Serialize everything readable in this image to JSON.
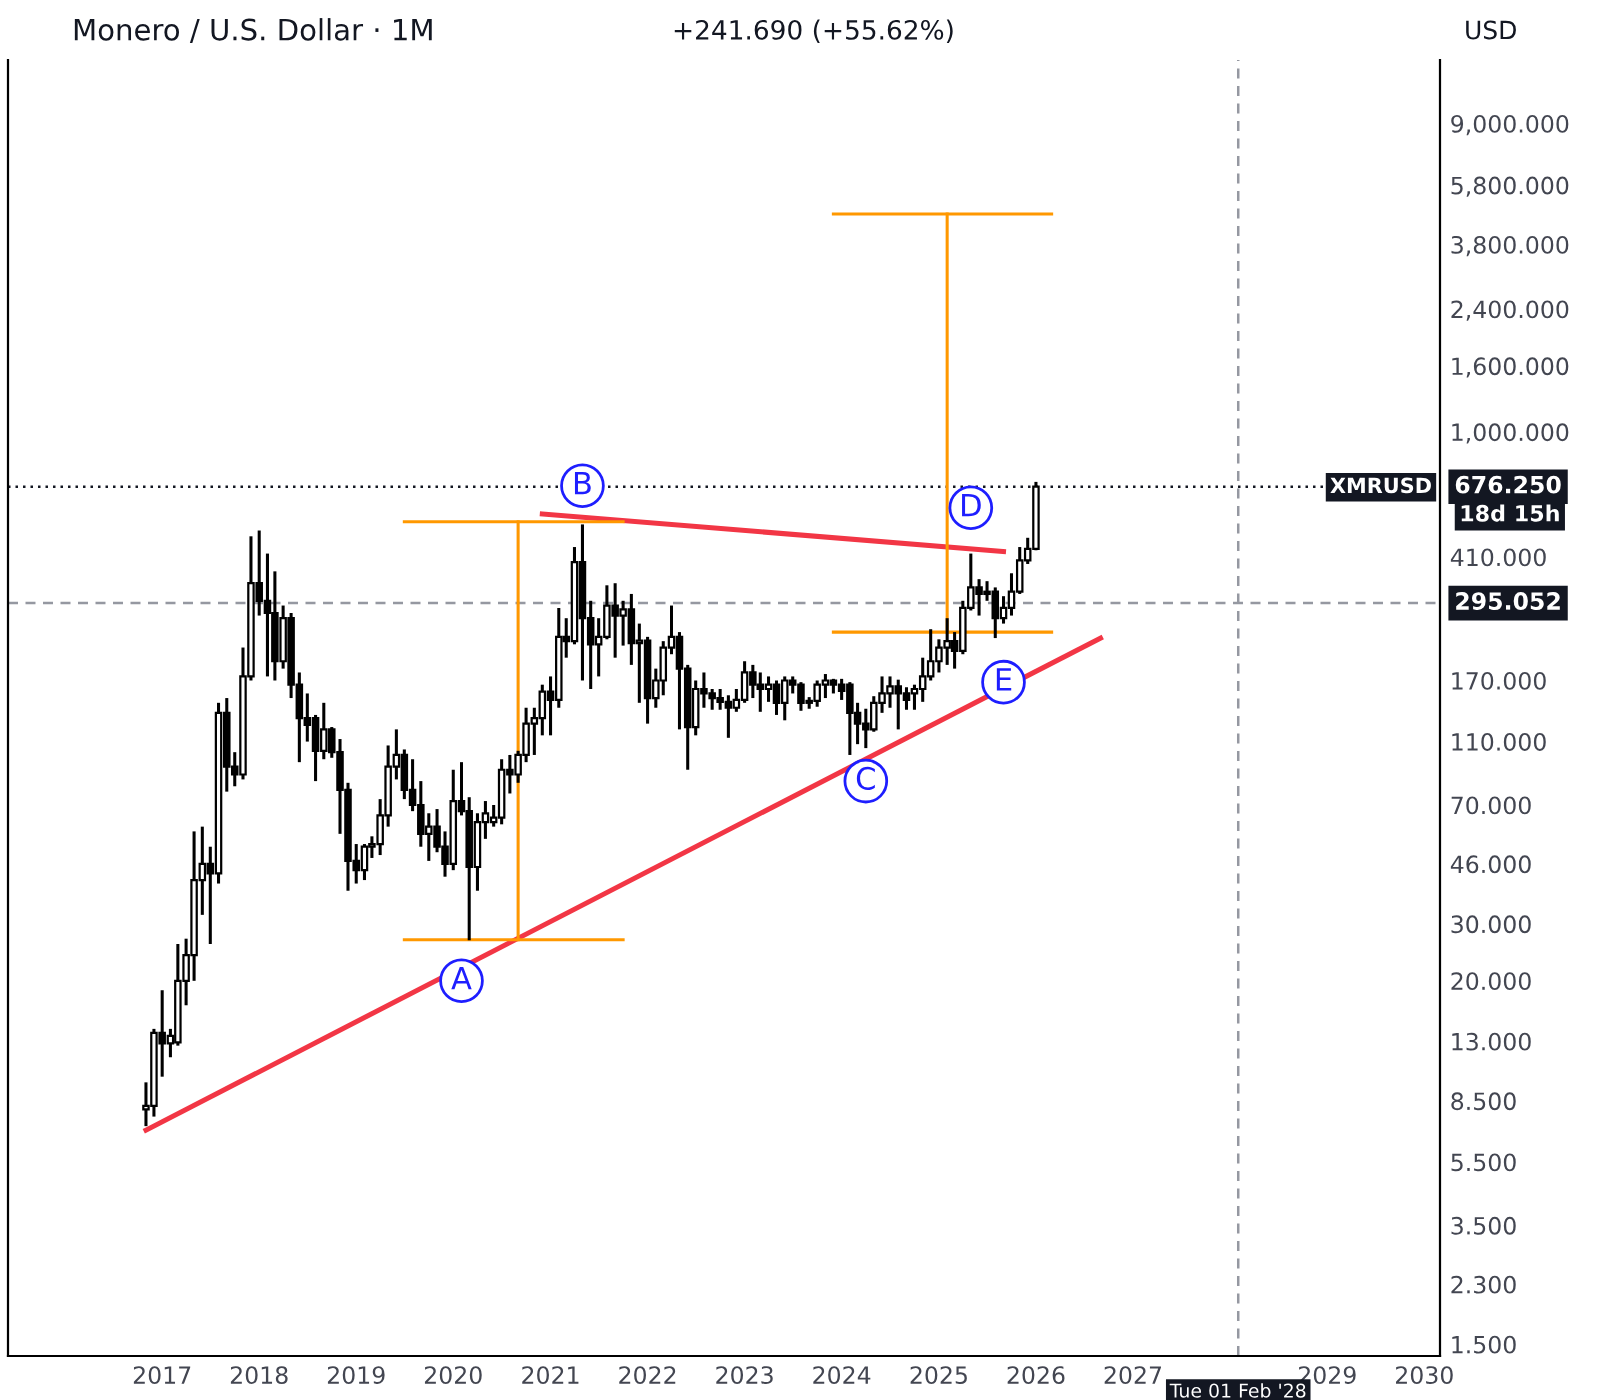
{
  "chart_data": {
    "type": "candlestick",
    "title": "Monero / U.S. Dollar · 1M",
    "subtitle": "+241.690 (+55.62%)",
    "x": [
      "2016-11",
      "2016-12",
      "2017-01",
      "2017-02",
      "2017-03",
      "2017-04",
      "2017-05",
      "2017-06",
      "2017-07",
      "2017-08",
      "2017-09",
      "2017-10",
      "2017-11",
      "2017-12",
      "2018-01",
      "2018-02",
      "2018-03",
      "2018-04",
      "2018-05",
      "2018-06",
      "2018-07",
      "2018-08",
      "2018-09",
      "2018-10",
      "2018-11",
      "2018-12",
      "2019-01",
      "2019-02",
      "2019-03",
      "2019-04",
      "2019-05",
      "2019-06",
      "2019-07",
      "2019-08",
      "2019-09",
      "2019-10",
      "2019-11",
      "2019-12",
      "2020-01",
      "2020-02",
      "2020-03",
      "2020-04",
      "2020-05",
      "2020-06",
      "2020-07",
      "2020-08",
      "2020-09",
      "2020-10",
      "2020-11",
      "2020-12",
      "2021-01",
      "2021-02",
      "2021-03",
      "2021-04",
      "2021-05",
      "2021-06",
      "2021-07",
      "2021-08",
      "2021-09",
      "2021-10",
      "2021-11",
      "2021-12",
      "2022-01",
      "2022-02",
      "2022-03",
      "2022-04",
      "2022-05",
      "2022-06",
      "2022-07",
      "2022-08",
      "2022-09",
      "2022-10",
      "2022-11",
      "2022-12",
      "2023-01",
      "2023-02",
      "2023-03",
      "2023-04",
      "2023-05",
      "2023-06",
      "2023-07",
      "2023-08",
      "2023-09",
      "2023-10",
      "2023-11",
      "2023-12",
      "2024-01",
      "2024-02",
      "2024-03",
      "2024-04",
      "2024-05",
      "2024-06",
      "2024-07",
      "2024-08",
      "2024-09",
      "2024-10",
      "2024-11",
      "2024-12",
      "2025-01",
      "2025-02",
      "2025-03",
      "2025-04",
      "2025-05",
      "2025-06",
      "2025-07",
      "2025-08",
      "2025-09",
      "2025-10",
      "2025-11",
      "2025-12",
      "2026-01"
    ],
    "ohlc": [
      [
        8.0,
        9.7,
        7.1,
        8.2
      ],
      [
        8.2,
        14.2,
        7.6,
        13.8
      ],
      [
        13.8,
        18.7,
        10.1,
        12.8
      ],
      [
        12.8,
        14.2,
        11.6,
        13.5
      ],
      [
        12.9,
        26,
        12.6,
        20
      ],
      [
        20,
        27,
        16.8,
        24
      ],
      [
        24,
        58,
        20,
        41
      ],
      [
        41,
        60,
        32,
        46
      ],
      [
        46,
        52,
        26,
        43
      ],
      [
        43,
        145,
        40,
        135
      ],
      [
        135,
        150,
        77,
        92
      ],
      [
        92,
        102,
        80,
        87
      ],
      [
        87,
        215,
        84,
        175
      ],
      [
        175,
        475,
        170,
        340
      ],
      [
        340,
        495,
        270,
        300
      ],
      [
        300,
        420,
        175,
        275
      ],
      [
        275,
        370,
        170,
        195
      ],
      [
        195,
        290,
        185,
        265
      ],
      [
        265,
        275,
        150,
        165
      ],
      [
        165,
        180,
        95,
        130
      ],
      [
        130,
        155,
        110,
        124
      ],
      [
        130,
        133,
        83,
        103
      ],
      [
        103,
        145,
        97,
        120
      ],
      [
        120,
        122,
        98,
        102
      ],
      [
        102,
        112,
        57,
        78
      ],
      [
        78,
        82,
        38,
        47
      ],
      [
        47,
        53,
        40,
        44
      ],
      [
        44,
        53,
        41,
        52
      ],
      [
        52,
        56,
        48,
        53
      ],
      [
        53,
        73,
        49,
        65
      ],
      [
        65,
        107,
        60,
        92
      ],
      [
        92,
        120,
        84,
        100
      ],
      [
        100,
        104,
        73,
        78
      ],
      [
        78,
        97,
        67,
        70
      ],
      [
        70,
        83,
        52,
        57
      ],
      [
        57,
        66,
        47,
        60
      ],
      [
        60,
        68,
        50,
        52
      ],
      [
        52,
        58,
        42,
        46
      ],
      [
        46,
        90,
        44,
        72
      ],
      [
        72,
        95,
        65,
        67
      ],
      [
        67,
        74,
        26.7,
        45
      ],
      [
        45,
        66,
        38,
        62
      ],
      [
        62,
        72,
        55,
        66
      ],
      [
        62,
        70,
        60,
        64
      ],
      [
        64,
        97,
        61,
        90
      ],
      [
        90,
        100,
        76,
        87
      ],
      [
        87,
        103,
        82,
        100
      ],
      [
        100,
        140,
        95,
        125
      ],
      [
        125,
        140,
        100,
        130
      ],
      [
        130,
        165,
        115,
        157
      ],
      [
        157,
        175,
        115,
        148
      ],
      [
        148,
        285,
        140,
        232
      ],
      [
        232,
        265,
        200,
        225
      ],
      [
        225,
        440,
        220,
        395
      ],
      [
        395,
        517,
        170,
        265
      ],
      [
        265,
        300,
        160,
        220
      ],
      [
        220,
        265,
        175,
        232
      ],
      [
        232,
        335,
        228,
        290
      ],
      [
        290,
        340,
        200,
        270
      ],
      [
        270,
        300,
        218,
        282
      ],
      [
        282,
        315,
        190,
        222
      ],
      [
        222,
        255,
        145,
        226
      ],
      [
        226,
        232,
        125,
        150
      ],
      [
        150,
        185,
        140,
        170
      ],
      [
        170,
        225,
        153,
        215
      ],
      [
        215,
        290,
        205,
        232
      ],
      [
        232,
        240,
        120,
        185
      ],
      [
        185,
        190,
        90,
        122
      ],
      [
        122,
        170,
        115,
        160
      ],
      [
        160,
        180,
        140,
        155
      ],
      [
        155,
        160,
        138,
        150
      ],
      [
        150,
        160,
        138,
        146
      ],
      [
        146,
        153,
        113,
        140
      ],
      [
        140,
        160,
        136,
        148
      ],
      [
        148,
        195,
        145,
        180
      ],
      [
        180,
        190,
        150,
        165
      ],
      [
        165,
        180,
        136,
        160
      ],
      [
        160,
        175,
        146,
        165
      ],
      [
        165,
        170,
        133,
        145
      ],
      [
        145,
        175,
        128,
        170
      ],
      [
        170,
        175,
        155,
        165
      ],
      [
        165,
        168,
        137,
        145
      ],
      [
        145,
        151,
        139,
        147
      ],
      [
        147,
        170,
        141,
        165
      ],
      [
        165,
        178,
        150,
        170
      ],
      [
        170,
        172,
        155,
        165
      ],
      [
        165,
        172,
        148,
        158
      ],
      [
        165,
        168,
        100,
        135
      ],
      [
        135,
        145,
        108,
        125
      ],
      [
        125,
        139,
        105,
        120
      ],
      [
        120,
        152,
        118,
        145
      ],
      [
        145,
        175,
        135,
        155
      ],
      [
        155,
        175,
        140,
        163
      ],
      [
        163,
        171,
        120,
        155
      ],
      [
        155,
        162,
        138,
        148
      ],
      [
        155,
        165,
        138,
        160
      ],
      [
        160,
        200,
        146,
        175
      ],
      [
        175,
        245,
        170,
        195
      ],
      [
        195,
        228,
        180,
        215
      ],
      [
        215,
        265,
        190,
        225
      ],
      [
        225,
        240,
        185,
        210
      ],
      [
        210,
        300,
        205,
        285
      ],
      [
        285,
        420,
        280,
        330
      ],
      [
        330,
        350,
        270,
        315
      ],
      [
        315,
        345,
        300,
        320
      ],
      [
        320,
        330,
        230,
        265
      ],
      [
        265,
        310,
        255,
        285
      ],
      [
        285,
        365,
        270,
        320
      ],
      [
        320,
        440,
        315,
        400
      ],
      [
        400,
        470,
        390,
        434.56
      ],
      [
        434.56,
        700,
        430,
        676.25
      ]
    ],
    "series": [
      {
        "type": "line",
        "color": "#f23645",
        "x": [
          "2016-11",
          "2026-09"
        ],
        "values": [
          6.9,
          230
        ]
      },
      {
        "type": "line",
        "color": "#f23645",
        "x": [
          "2020-12",
          "2025-09"
        ],
        "values": [
          557,
          426
        ]
      },
      {
        "type": "line",
        "color": "#ff9800",
        "x": [
          "2019-07",
          "2021-10"
        ],
        "values": [
          26.8,
          26.8
        ]
      },
      {
        "type": "line",
        "color": "#ff9800",
        "x": [
          "2020-09",
          "2020-09"
        ],
        "values": [
          26.8,
          527
        ]
      },
      {
        "type": "line",
        "color": "#ff9800",
        "x": [
          "2019-07",
          "2021-10"
        ],
        "values": [
          527,
          527
        ]
      },
      {
        "type": "line",
        "color": "#ff9800",
        "x": [
          "2023-12",
          "2026-03"
        ],
        "values": [
          240,
          240
        ]
      },
      {
        "type": "line",
        "color": "#ff9800",
        "x": [
          "2025-02",
          "2025-02"
        ],
        "values": [
          240,
          4725
        ]
      },
      {
        "type": "line",
        "color": "#ff9800",
        "x": [
          "2023-12",
          "2026-03"
        ],
        "values": [
          4725,
          4725
        ]
      }
    ],
    "annotations": [
      {
        "text": "A",
        "x": "2020-02",
        "y": 20
      },
      {
        "text": "B",
        "x": "2021-05",
        "y": 681
      },
      {
        "text": "C",
        "x": "2024-04",
        "y": 83
      },
      {
        "text": "D",
        "x": "2025-05",
        "y": 582
      },
      {
        "text": "E",
        "x": "2025-09",
        "y": 168
      },
      "USD",
      "XMRUSD",
      "18d 15h"
    ],
    "ref_lines": [
      {
        "axis": "y",
        "value": 676.25,
        "label": "676.250",
        "line_style": "dotted",
        "color": "#131722"
      },
      {
        "axis": "y",
        "value": 295.052,
        "label": "295.052",
        "line_style": "dashed",
        "color": "#9598a1"
      },
      {
        "axis": "x",
        "value": "2028-02-01",
        "label": "Tue 01 Feb '28",
        "line_style": "dashed",
        "color": "#9598a1"
      }
    ],
    "log": true,
    "grid": false,
    "xlim": [
      "2015-06",
      "2030-03"
    ],
    "ylim": [
      1.38,
      14150
    ],
    "xticks": [
      "2017",
      "2018",
      "2019",
      "2020",
      "2021",
      "2022",
      "2023",
      "2024",
      "2025",
      "2026",
      "2027",
      "2029",
      "2030"
    ],
    "yticks": [
      {
        "value": 1.5,
        "label": "1.500"
      },
      {
        "value": 2.3,
        "label": "2.300"
      },
      {
        "value": 3.5,
        "label": "3.500"
      },
      {
        "value": 5.5,
        "label": "5.500"
      },
      {
        "value": 8.5,
        "label": "8.500"
      },
      {
        "value": 13,
        "label": "13.000"
      },
      {
        "value": 20,
        "label": "20.000"
      },
      {
        "value": 30,
        "label": "30.000"
      },
      {
        "value": 46,
        "label": "46.000"
      },
      {
        "value": 70,
        "label": "70.000"
      },
      {
        "value": 110,
        "label": "110.000"
      },
      {
        "value": 170,
        "label": "170.000"
      },
      {
        "value": 410,
        "label": "410.000"
      },
      {
        "value": 1000,
        "label": "1,000.000"
      },
      {
        "value": 1600,
        "label": "1,600.000"
      },
      {
        "value": 2400,
        "label": "2,400.000"
      },
      {
        "value": 3800,
        "label": "3,800.000"
      },
      {
        "value": 5800,
        "label": "5,800.000"
      },
      {
        "value": 9000,
        "label": "9,000.000"
      }
    ]
  }
}
